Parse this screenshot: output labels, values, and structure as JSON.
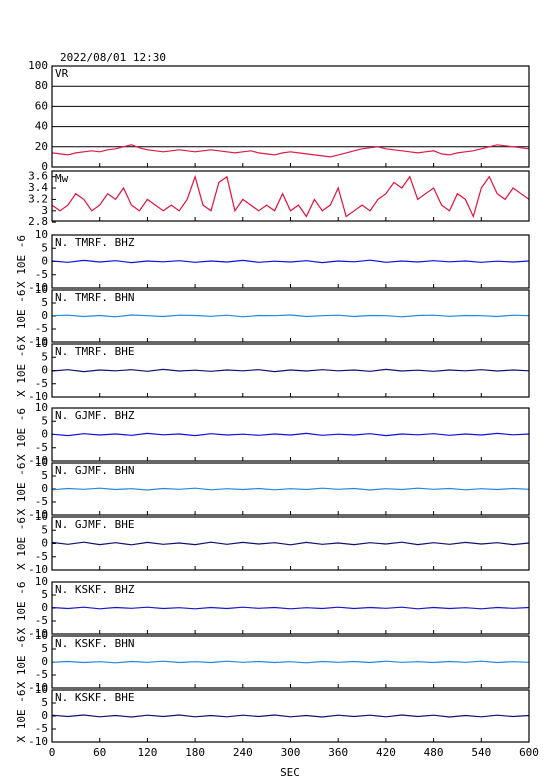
{
  "title": "2022/08/01  12:30",
  "x_label": "SEC",
  "chart_data": [
    {
      "type": "line",
      "label": "VR",
      "x": [
        0,
        10,
        20,
        30,
        40,
        50,
        60,
        70,
        80,
        90,
        100,
        110,
        120,
        130,
        140,
        150,
        160,
        170,
        180,
        190,
        200,
        210,
        220,
        230,
        240,
        250,
        260,
        270,
        280,
        290,
        300,
        310,
        320,
        330,
        340,
        350,
        360,
        370,
        380,
        390,
        400,
        410,
        420,
        430,
        440,
        450,
        460,
        470,
        480,
        490,
        500,
        510,
        520,
        530,
        540,
        550,
        560,
        570,
        580,
        590,
        600
      ],
      "series": [
        {
          "color": "#e01848",
          "values": [
            14,
            13,
            12,
            14,
            15,
            16,
            15,
            17,
            18,
            20,
            22,
            19,
            17,
            16,
            15,
            16,
            17,
            16,
            15,
            16,
            17,
            16,
            15,
            14,
            15,
            16,
            14,
            13,
            12,
            14,
            15,
            14,
            13,
            12,
            11,
            10,
            12,
            14,
            16,
            18,
            19,
            20,
            18,
            17,
            16,
            15,
            14,
            15,
            16,
            13,
            12,
            14,
            15,
            16,
            18,
            20,
            22,
            21,
            20,
            19,
            18
          ]
        }
      ],
      "xlim": [
        0,
        600
      ],
      "ylim": [
        0,
        100
      ],
      "yticks": [
        0,
        20,
        40,
        60,
        80,
        100
      ],
      "grid": true
    },
    {
      "type": "line",
      "label": "Mw",
      "x": [
        0,
        10,
        20,
        30,
        40,
        50,
        60,
        70,
        80,
        90,
        100,
        110,
        120,
        130,
        140,
        150,
        160,
        170,
        180,
        190,
        200,
        210,
        220,
        230,
        240,
        250,
        260,
        270,
        280,
        290,
        300,
        310,
        320,
        330,
        340,
        350,
        360,
        370,
        380,
        390,
        400,
        410,
        420,
        430,
        440,
        450,
        460,
        470,
        480,
        490,
        500,
        510,
        520,
        530,
        540,
        550,
        560,
        570,
        580,
        590,
        600
      ],
      "series": [
        {
          "color": "#e8103a",
          "values": [
            3.1,
            3.0,
            3.1,
            3.3,
            3.2,
            3.0,
            3.1,
            3.3,
            3.2,
            3.4,
            3.1,
            3.0,
            3.2,
            3.1,
            3.0,
            3.1,
            3.0,
            3.2,
            3.6,
            3.1,
            3.0,
            3.5,
            3.6,
            3.0,
            3.2,
            3.1,
            3.0,
            3.1,
            3.0,
            3.3,
            3.0,
            3.1,
            2.9,
            3.2,
            3.0,
            3.1,
            3.4,
            2.9,
            3.0,
            3.1,
            3.0,
            3.2,
            3.3,
            3.5,
            3.4,
            3.6,
            3.2,
            3.3,
            3.4,
            3.1,
            3.0,
            3.3,
            3.2,
            2.9,
            3.4,
            3.6,
            3.3,
            3.2,
            3.4,
            3.3,
            3.2
          ]
        }
      ],
      "xlim": [
        0,
        600
      ],
      "ylim": [
        2.82,
        3.7
      ],
      "yticks": [
        2.8,
        3.0,
        3.2,
        3.4,
        3.6
      ],
      "grid": false
    },
    {
      "type": "line",
      "label": "N. TMRF. BHZ",
      "y_label": "X 10E -6",
      "x": [
        0,
        20,
        40,
        60,
        80,
        100,
        120,
        140,
        160,
        180,
        200,
        220,
        240,
        260,
        280,
        300,
        320,
        340,
        360,
        380,
        400,
        420,
        440,
        460,
        480,
        500,
        520,
        540,
        560,
        580,
        600
      ],
      "series": [
        {
          "color": "#1010e0",
          "values": [
            0.2,
            -0.3,
            0.4,
            -0.2,
            0.3,
            -0.4,
            0.2,
            -0.1,
            0.3,
            -0.3,
            0.2,
            -0.2,
            0.4,
            -0.3,
            0.1,
            -0.2,
            0.3,
            -0.4,
            0.2,
            -0.1,
            0.5,
            -0.3,
            0.2,
            -0.2,
            0.3,
            -0.1,
            0.2,
            -0.3,
            0.1,
            -0.2,
            0.2
          ]
        }
      ],
      "xlim": [
        0,
        600
      ],
      "ylim": [
        -10,
        10
      ],
      "yticks": [
        -10,
        -5,
        0,
        5,
        10
      ]
    },
    {
      "type": "line",
      "label": "N. TMRF. BHN",
      "y_label": "X 10E -6",
      "x": [
        0,
        20,
        40,
        60,
        80,
        100,
        120,
        140,
        160,
        180,
        200,
        220,
        240,
        260,
        280,
        300,
        320,
        340,
        360,
        380,
        400,
        420,
        440,
        460,
        480,
        500,
        520,
        540,
        560,
        580,
        600
      ],
      "series": [
        {
          "color": "#2288e0",
          "values": [
            0.1,
            0.3,
            -0.2,
            0.2,
            -0.3,
            0.4,
            0.1,
            -0.2,
            0.3,
            0.2,
            -0.1,
            0.3,
            -0.3,
            0.2,
            0.1,
            0.4,
            -0.2,
            0.1,
            0.3,
            -0.2,
            0.2,
            0.1,
            -0.3,
            0.2,
            0.3,
            -0.1,
            0.2,
            0.1,
            -0.2,
            0.3,
            0.1
          ]
        }
      ],
      "xlim": [
        0,
        600
      ],
      "ylim": [
        -10,
        10
      ],
      "yticks": [
        -10,
        -5,
        0,
        5,
        10
      ]
    },
    {
      "type": "line",
      "label": "N. TMRF. BHE",
      "y_label": "X 10E -6",
      "x": [
        0,
        20,
        40,
        60,
        80,
        100,
        120,
        140,
        160,
        180,
        200,
        220,
        240,
        260,
        280,
        300,
        320,
        340,
        360,
        380,
        400,
        420,
        440,
        460,
        480,
        500,
        520,
        540,
        560,
        580,
        600
      ],
      "series": [
        {
          "color": "#101070",
          "values": [
            -0.2,
            0.3,
            -0.4,
            0.2,
            -0.1,
            0.3,
            -0.3,
            0.4,
            -0.2,
            0.1,
            -0.3,
            0.2,
            -0.1,
            0.3,
            -0.4,
            0.2,
            -0.2,
            0.3,
            -0.1,
            0.2,
            -0.3,
            0.4,
            -0.2,
            0.1,
            -0.3,
            0.2,
            -0.1,
            0.3,
            -0.2,
            0.2,
            -0.1
          ]
        }
      ],
      "xlim": [
        0,
        600
      ],
      "ylim": [
        -10,
        10
      ],
      "yticks": [
        -10,
        -5,
        0,
        5,
        10
      ]
    },
    {
      "type": "line",
      "label": "N. GJMF. BHZ",
      "y_label": "X 10E -6",
      "x": [
        0,
        20,
        40,
        60,
        80,
        100,
        120,
        140,
        160,
        180,
        200,
        220,
        240,
        260,
        280,
        300,
        320,
        340,
        360,
        380,
        400,
        420,
        440,
        460,
        480,
        500,
        520,
        540,
        560,
        580,
        600
      ],
      "series": [
        {
          "color": "#1010e0",
          "values": [
            0.1,
            -0.4,
            0.3,
            -0.2,
            0.2,
            -0.3,
            0.4,
            -0.1,
            0.2,
            -0.4,
            0.3,
            -0.2,
            0.1,
            -0.3,
            0.2,
            -0.2,
            0.4,
            -0.3,
            0.1,
            -0.2,
            0.3,
            -0.4,
            0.2,
            -0.1,
            0.3,
            -0.3,
            0.2,
            -0.2,
            0.4,
            -0.1,
            0.2
          ]
        }
      ],
      "xlim": [
        0,
        600
      ],
      "ylim": [
        -10,
        10
      ],
      "yticks": [
        -10,
        -5,
        0,
        5,
        10
      ]
    },
    {
      "type": "line",
      "label": "N. GJMF. BHN",
      "y_label": "X 10E -6",
      "x": [
        0,
        20,
        40,
        60,
        80,
        100,
        120,
        140,
        160,
        180,
        200,
        220,
        240,
        260,
        280,
        300,
        320,
        340,
        360,
        380,
        400,
        420,
        440,
        460,
        480,
        500,
        520,
        540,
        560,
        580,
        600
      ],
      "series": [
        {
          "color": "#2288e0",
          "values": [
            -0.3,
            0.2,
            -0.1,
            0.3,
            -0.2,
            0.1,
            -0.4,
            0.2,
            -0.1,
            0.3,
            -0.3,
            0.1,
            -0.2,
            0.2,
            -0.3,
            0.1,
            -0.2,
            0.3,
            -0.1,
            0.2,
            -0.4,
            0.1,
            -0.2,
            0.3,
            -0.1,
            0.2,
            -0.3,
            0.1,
            -0.2,
            0.2,
            -0.1
          ]
        }
      ],
      "xlim": [
        0,
        600
      ],
      "ylim": [
        -10,
        10
      ],
      "yticks": [
        -10,
        -5,
        0,
        5,
        10
      ]
    },
    {
      "type": "line",
      "label": "N. GJMF. BHE",
      "y_label": "X 10E -6",
      "x": [
        0,
        20,
        40,
        60,
        80,
        100,
        120,
        140,
        160,
        180,
        200,
        220,
        240,
        260,
        280,
        300,
        320,
        340,
        360,
        380,
        400,
        420,
        440,
        460,
        480,
        500,
        520,
        540,
        560,
        580,
        600
      ],
      "series": [
        {
          "color": "#101070",
          "values": [
            0.4,
            -0.3,
            0.5,
            -0.4,
            0.3,
            -0.5,
            0.4,
            -0.3,
            0.2,
            -0.4,
            0.5,
            -0.3,
            0.4,
            -0.2,
            0.3,
            -0.5,
            0.4,
            -0.3,
            0.2,
            -0.4,
            0.3,
            -0.2,
            0.5,
            -0.4,
            0.3,
            -0.3,
            0.4,
            -0.2,
            0.3,
            -0.4,
            0.2
          ]
        }
      ],
      "xlim": [
        0,
        600
      ],
      "ylim": [
        -10,
        10
      ],
      "yticks": [
        -10,
        -5,
        0,
        5,
        10
      ]
    },
    {
      "type": "line",
      "label": "N. KSKF. BHZ",
      "y_label": "X 10E -6",
      "x": [
        0,
        20,
        40,
        60,
        80,
        100,
        120,
        140,
        160,
        180,
        200,
        220,
        240,
        260,
        280,
        300,
        320,
        340,
        360,
        380,
        400,
        420,
        440,
        460,
        480,
        500,
        520,
        540,
        560,
        580,
        600
      ],
      "series": [
        {
          "color": "#1818c8",
          "values": [
            0.2,
            -0.2,
            0.3,
            -0.3,
            0.2,
            -0.1,
            0.3,
            -0.2,
            0.1,
            -0.3,
            0.2,
            -0.2,
            0.3,
            -0.1,
            0.2,
            -0.3,
            0.1,
            -0.2,
            0.3,
            -0.2,
            0.2,
            -0.1,
            0.3,
            -0.3,
            0.2,
            -0.2,
            0.1,
            -0.3,
            0.2,
            -0.1,
            0.2
          ]
        }
      ],
      "xlim": [
        0,
        600
      ],
      "ylim": [
        -10,
        10
      ],
      "yticks": [
        -10,
        -5,
        0,
        5,
        10
      ]
    },
    {
      "type": "line",
      "label": "N. KSKF. BHN",
      "y_label": "X 10E -6",
      "x": [
        0,
        20,
        40,
        60,
        80,
        100,
        120,
        140,
        160,
        180,
        200,
        220,
        240,
        260,
        280,
        300,
        320,
        340,
        360,
        380,
        400,
        420,
        440,
        460,
        480,
        500,
        520,
        540,
        560,
        580,
        600
      ],
      "series": [
        {
          "color": "#2288e0",
          "values": [
            -0.1,
            0.2,
            -0.2,
            0.1,
            -0.3,
            0.2,
            -0.1,
            0.3,
            -0.2,
            0.1,
            -0.2,
            0.3,
            -0.1,
            0.2,
            -0.2,
            0.1,
            -0.3,
            0.2,
            -0.1,
            0.2,
            -0.2,
            0.3,
            -0.1,
            0.1,
            -0.2,
            0.2,
            -0.1,
            0.3,
            -0.2,
            0.1,
            -0.1
          ]
        }
      ],
      "xlim": [
        0,
        600
      ],
      "ylim": [
        -10,
        10
      ],
      "yticks": [
        -10,
        -5,
        0,
        5,
        10
      ]
    },
    {
      "type": "line",
      "label": "N. KSKF. BHE",
      "y_label": "X 10E -6",
      "x": [
        0,
        20,
        40,
        60,
        80,
        100,
        120,
        140,
        160,
        180,
        200,
        220,
        240,
        260,
        280,
        300,
        320,
        340,
        360,
        380,
        400,
        420,
        440,
        460,
        480,
        500,
        520,
        540,
        560,
        580,
        600
      ],
      "series": [
        {
          "color": "#101070",
          "values": [
            0.3,
            -0.2,
            0.4,
            -0.3,
            0.2,
            -0.4,
            0.3,
            -0.2,
            0.4,
            -0.3,
            0.2,
            -0.3,
            0.3,
            -0.2,
            0.4,
            -0.3,
            0.2,
            -0.4,
            0.3,
            -0.2,
            0.3,
            -0.3,
            0.4,
            -0.2,
            0.3,
            -0.4,
            0.2,
            -0.3,
            0.3,
            -0.2,
            0.2
          ]
        }
      ],
      "xlim": [
        0,
        600
      ],
      "ylim": [
        -10,
        10
      ],
      "yticks": [
        -10,
        -5,
        0,
        5,
        10
      ],
      "xticks": [
        0,
        60,
        120,
        180,
        240,
        300,
        360,
        420,
        480,
        540,
        600
      ]
    }
  ]
}
